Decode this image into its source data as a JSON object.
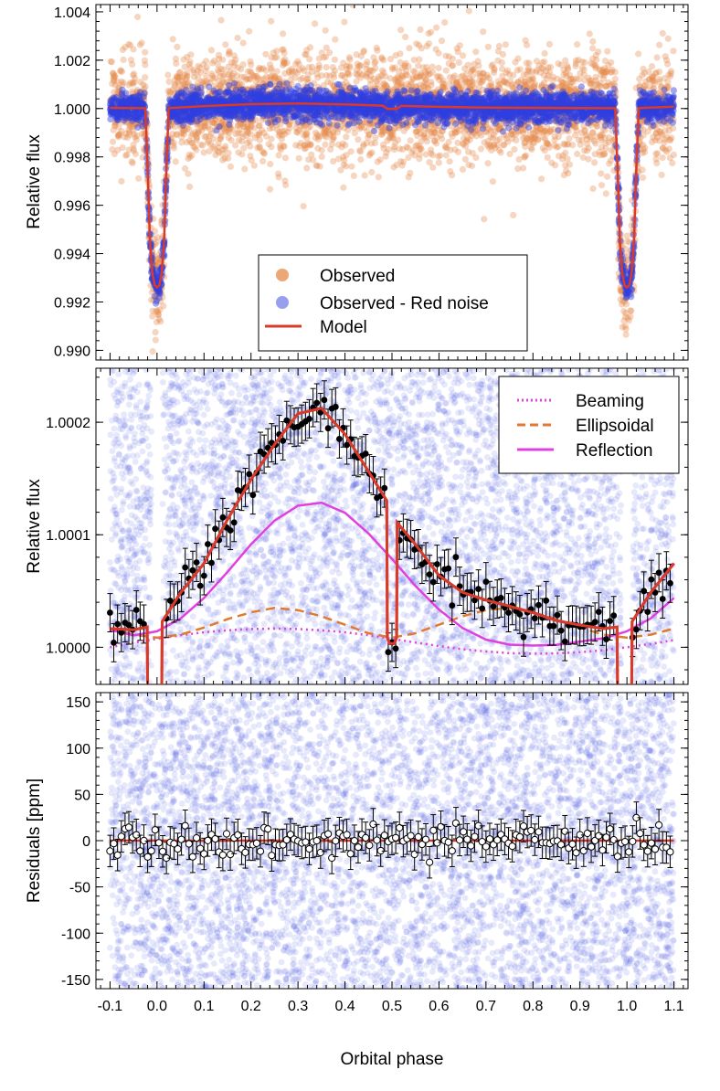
{
  "xlabel": "Orbital phase",
  "colors": {
    "observed": "#e58a4a",
    "detrended": "#2f3fe0",
    "model": "#d93a2a",
    "beaming": "#e040e0",
    "ellipsoidal": "#e07a30",
    "reflection": "#e040e0",
    "bins": "#000000"
  },
  "chart_data": [
    {
      "type": "scatter",
      "panel": "top",
      "ylabel": "Relative flux",
      "xlim": [
        -0.13,
        1.13
      ],
      "ylim": [
        0.9896,
        1.0043
      ],
      "x_ticks": [
        -0.1,
        0.0,
        0.1,
        0.2,
        0.3,
        0.4,
        0.5,
        0.6,
        0.7,
        0.8,
        0.9,
        1.0,
        1.1
      ],
      "y_ticks": [
        0.99,
        0.992,
        0.994,
        0.996,
        0.998,
        1.0,
        1.002,
        1.004
      ],
      "y_tick_labels": [
        "0.990",
        "0.992",
        "0.994",
        "0.996",
        "0.998",
        "1.000",
        "1.002",
        "1.004"
      ],
      "legend": {
        "position": "bottom-center",
        "entries": [
          {
            "label": "Observed",
            "style": "marker",
            "color": "#e58a4a"
          },
          {
            "label": "Observed - Red noise",
            "style": "marker",
            "color": "#2f3fe0"
          },
          {
            "label": "Model",
            "style": "line",
            "color": "#d93a2a"
          }
        ]
      },
      "observed_scatter_std": 0.0011,
      "detrended_scatter_std": 0.0003,
      "primary_eclipse_depth": 0.0074,
      "secondary_eclipse_depth": 0.00014,
      "series": [
        {
          "name": "Model",
          "x": [
            -0.1,
            -0.05,
            -0.025,
            -0.02,
            -0.015,
            -0.01,
            -0.005,
            0.0,
            0.005,
            0.01,
            0.015,
            0.02,
            0.025,
            0.1,
            0.2,
            0.3,
            0.4,
            0.48,
            0.49,
            0.51,
            0.52,
            0.6,
            0.7,
            0.8,
            0.9,
            0.975,
            0.98,
            0.985,
            0.99,
            0.995,
            1.0,
            1.005,
            1.01,
            1.015,
            1.02,
            1.025,
            1.05,
            1.1
          ],
          "y": [
            1.00003,
            1.00002,
            1.000015,
            0.9975,
            0.9945,
            0.9932,
            0.9927,
            0.9926,
            0.9927,
            0.9932,
            0.9945,
            0.9975,
            1.00002,
            1.0001,
            1.00018,
            1.00021,
            1.00017,
            1.00012,
            0.99999,
            0.99999,
            1.00011,
            1.00007,
            1.00004,
            1.00003,
            1.00002,
            1.000015,
            0.9975,
            0.9945,
            0.9932,
            0.9927,
            0.9926,
            0.9927,
            0.9932,
            0.9945,
            0.9975,
            1.00002,
            1.00004,
            1.00008
          ]
        }
      ]
    },
    {
      "type": "line",
      "panel": "middle",
      "ylabel": "Relative flux",
      "xlim": [
        -0.13,
        1.13
      ],
      "ylim": [
        0.999967,
        1.000248
      ],
      "x_ticks": [
        -0.1,
        0.0,
        0.1,
        0.2,
        0.3,
        0.4,
        0.5,
        0.6,
        0.7,
        0.8,
        0.9,
        1.0,
        1.1
      ],
      "y_ticks": [
        1.0,
        1.0001,
        1.0002
      ],
      "y_tick_labels": [
        "1.0000",
        "1.0001",
        "1.0002"
      ],
      "legend": {
        "position": "top-right",
        "entries": [
          {
            "label": "Beaming",
            "style": "dotted",
            "color": "#e040e0"
          },
          {
            "label": "Ellipsoidal",
            "style": "dashed",
            "color": "#e07a30"
          },
          {
            "label": "Reflection",
            "style": "solid",
            "color": "#e040e0"
          }
        ]
      },
      "binned_errorbar": 1.7e-05,
      "series": [
        {
          "name": "Beaming",
          "style": "dotted",
          "x": [
            -0.1,
            -0.05,
            0.0,
            0.05,
            0.1,
            0.15,
            0.2,
            0.25,
            0.3,
            0.35,
            0.4,
            0.45,
            0.5,
            0.55,
            0.6,
            0.65,
            0.7,
            0.75,
            0.8,
            0.85,
            0.9,
            0.95,
            1.0,
            1.05,
            1.1
          ],
          "y": [
            1.0,
            1.000004,
            1.0000075,
            1.0000107,
            1.0000133,
            1.0000151,
            1.0000162,
            1.0000166,
            1.0000162,
            1.0000151,
            1.0000133,
            1.0000107,
            1.0000075,
            1.0000042,
            1.000001,
            0.9999983,
            0.9999962,
            0.9999948,
            0.9999943,
            0.9999945,
            0.9999956,
            0.9999974,
            1.0,
            1.000003,
            1.0000064
          ]
        },
        {
          "name": "Ellipsoidal",
          "style": "dashed",
          "x": [
            -0.1,
            -0.05,
            0.0,
            0.05,
            0.1,
            0.15,
            0.2,
            0.25,
            0.3,
            0.35,
            0.4,
            0.45,
            0.5,
            0.55,
            0.6,
            0.65,
            0.7,
            0.75,
            0.8,
            0.85,
            0.9,
            0.95,
            1.0,
            1.05,
            1.1
          ],
          "y": [
            1.0000165,
            1.0000112,
            1.0000085,
            1.0000112,
            1.0000175,
            1.000025,
            1.000031,
            1.000035,
            1.000033,
            1.0000275,
            1.00002,
            1.0000125,
            1.0000085,
            1.0000125,
            1.00002,
            1.0000275,
            1.000033,
            1.000035,
            1.000031,
            1.000025,
            1.0000175,
            1.0000112,
            1.0000085,
            1.0000112,
            1.0000165
          ]
        },
        {
          "name": "Reflection",
          "style": "solid",
          "x": [
            -0.1,
            -0.05,
            0.0,
            0.05,
            0.1,
            0.15,
            0.2,
            0.25,
            0.3,
            0.35,
            0.4,
            0.45,
            0.5,
            0.55,
            0.6,
            0.65,
            0.7,
            0.75,
            0.8,
            0.85,
            0.9,
            0.95,
            1.0,
            1.05,
            1.1
          ],
          "y": [
            1.0000155,
            1.0000106,
            1.0000142,
            1.0000255,
            1.0000438,
            1.000067,
            1.0000915,
            1.0001125,
            1.0001258,
            1.0001285,
            1.0001195,
            1.0001012,
            1.0000785,
            1.0000545,
            1.0000335,
            1.0000172,
            1.0000068,
            1.0000023,
            1.0000015,
            1.0000022,
            1.000005,
            1.000008,
            1.0000142,
            1.0000255,
            1.0000438
          ]
        },
        {
          "name": "Model",
          "style": "solid",
          "x": [
            -0.1,
            -0.05,
            -0.021,
            -0.02,
            -0.01,
            0.0,
            0.01,
            0.011,
            0.05,
            0.1,
            0.15,
            0.2,
            0.25,
            0.3,
            0.35,
            0.4,
            0.45,
            0.489,
            0.49,
            0.495,
            0.505,
            0.51,
            0.511,
            0.55,
            0.6,
            0.65,
            0.7,
            0.75,
            0.8,
            0.85,
            0.9,
            0.95,
            0.979,
            0.98,
            0.99,
            1.0,
            1.01,
            1.011,
            1.05,
            1.1
          ],
          "y": [
            1.0000165,
            1.0000156,
            1.000018,
            0.99996,
            0.99996,
            0.99996,
            0.99996,
            1.0000228,
            1.0000484,
            1.0000745,
            1.0001136,
            1.0001492,
            1.0001802,
            1.0002077,
            1.0002124,
            1.0001893,
            1.0001563,
            1.0001302,
            1.0000085,
            1.0000033,
            1.0000033,
            1.0000085,
            1.0001107,
            1.0000914,
            1.0000637,
            1.0000489,
            1.0000419,
            1.0000365,
            1.0000308,
            1.0000237,
            1.0000197,
            1.0000165,
            1.000018,
            0.99996,
            0.99996,
            0.99996,
            0.99996,
            1.0000228,
            1.0000484,
            1.0000745
          ]
        }
      ]
    },
    {
      "type": "scatter",
      "panel": "bottom",
      "ylabel": "Residuals [ppm]",
      "xlim": [
        -0.13,
        1.13
      ],
      "ylim": [
        -160,
        160
      ],
      "x_ticks": [
        -0.1,
        0.0,
        0.1,
        0.2,
        0.3,
        0.4,
        0.5,
        0.6,
        0.7,
        0.8,
        0.9,
        1.0,
        1.1
      ],
      "x_tick_labels": [
        "-0.1",
        "0.0",
        "0.1",
        "0.2",
        "0.3",
        "0.4",
        "0.5",
        "0.6",
        "0.7",
        "0.8",
        "0.9",
        "1.0",
        "1.1"
      ],
      "y_ticks": [
        -150,
        -100,
        -50,
        0,
        50,
        100,
        150
      ],
      "y_tick_labels": [
        "-150",
        "-100",
        "-50",
        "0",
        "50",
        "100",
        "150"
      ],
      "binned_errorbar_ppm": 17,
      "zero_line": 0
    }
  ]
}
